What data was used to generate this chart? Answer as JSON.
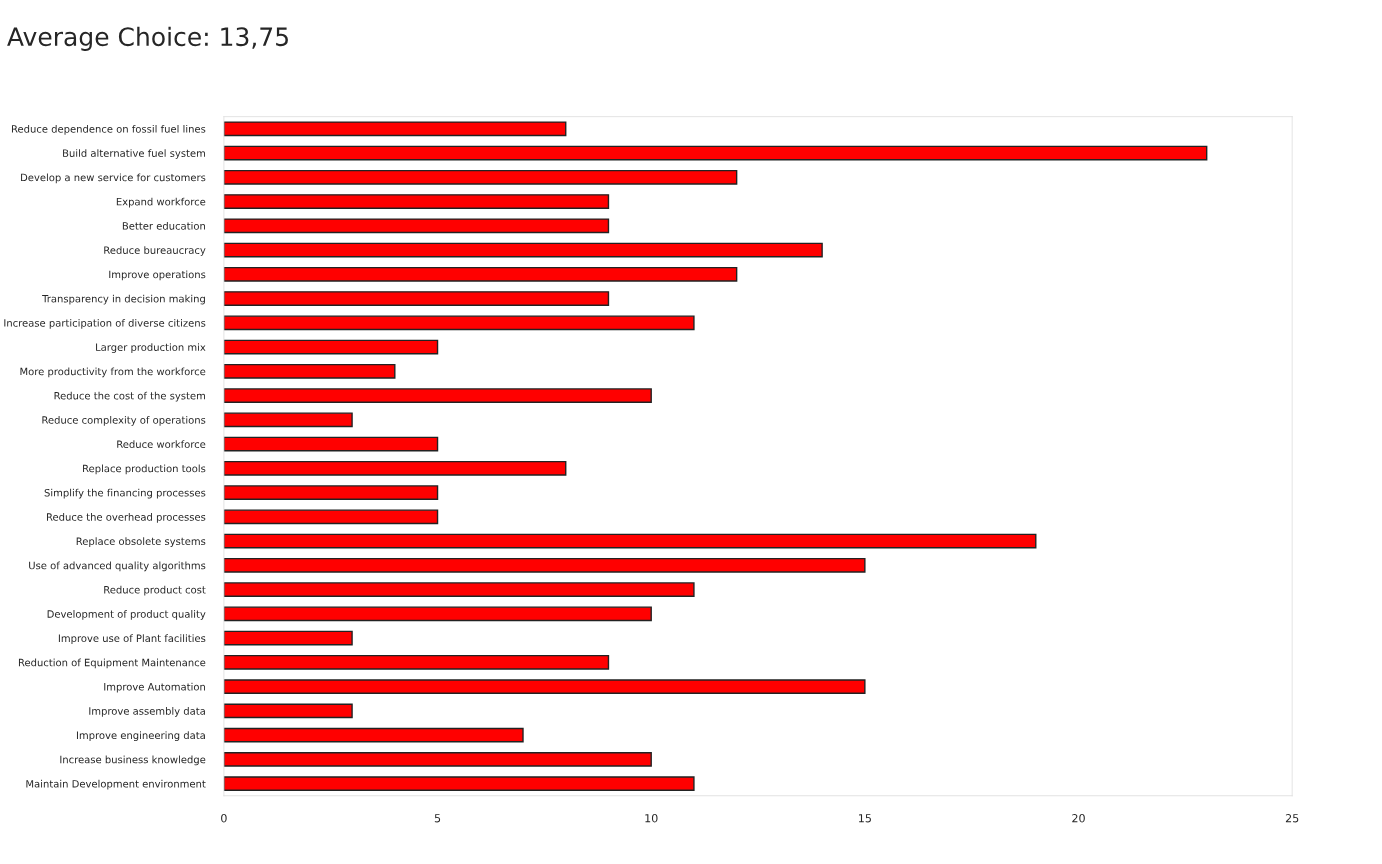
{
  "chart_data": {
    "type": "bar",
    "orientation": "horizontal",
    "title": "Average Choice: 13,75",
    "categories": [
      "Reduce dependence on fossil fuel lines",
      "Build alternative fuel system",
      "Develop a new service for customers",
      "Expand workforce",
      "Better education",
      "Reduce bureaucracy",
      "Improve operations",
      "Transparency in decision making",
      "Increase participation of diverse citizens",
      "Larger production mix",
      "More productivity from the workforce",
      "Reduce the cost of the system",
      "Reduce complexity of operations",
      "Reduce workforce",
      "Replace production tools",
      "Simplify the financing processes",
      "Reduce the overhead processes",
      "Replace obsolete systems",
      "Use of advanced quality algorithms",
      "Reduce product cost",
      "Development of product quality",
      "Improve use of Plant facilities",
      "Reduction of Equipment Maintenance",
      "Improve Automation",
      "Improve assembly data",
      "Improve engineering data",
      "Increase business knowledge",
      "Maintain Development environment"
    ],
    "values": [
      8,
      23,
      12,
      9,
      9,
      14,
      12,
      9,
      11,
      5,
      4,
      10,
      3,
      5,
      8,
      5,
      5,
      19,
      15,
      11,
      10,
      3,
      9,
      15,
      3,
      7,
      10,
      11
    ],
    "color": "#ff0000",
    "xlim": [
      0,
      25
    ],
    "xticks": [
      0,
      5,
      10,
      15,
      20,
      25
    ],
    "grid": false
  }
}
